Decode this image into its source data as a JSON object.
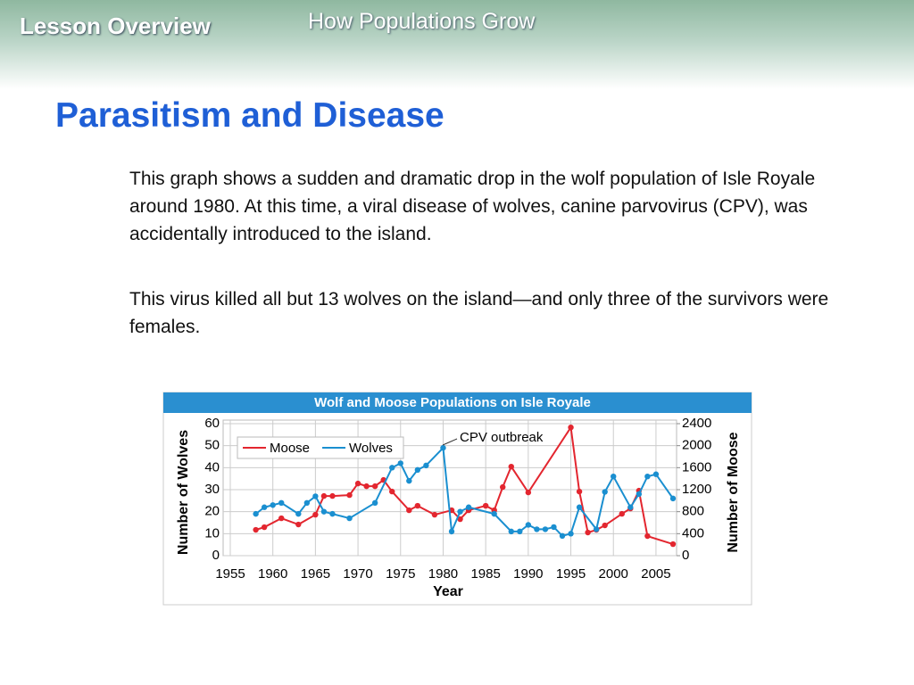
{
  "header": {
    "section": "Lesson Overview",
    "topic": "How Populations Grow"
  },
  "title": "Parasitism and Disease",
  "paragraphs": [
    "This graph shows a sudden and dramatic drop in the wolf population of Isle Royale around 1980. At this time, a viral disease of wolves, canine parvovirus (CPV), was accidentally introduced to the island.",
    "This virus killed all but 13 wolves on the island—and only three of the survivors were females."
  ],
  "chart_data": {
    "type": "line",
    "title": "Wolf and  Moose Populations on Isle Royale",
    "xlabel": "Year",
    "ylabel": "Number of Wolves",
    "y2label": "Number of Moose",
    "annotation": "CPV outbreak",
    "xlim": [
      1955,
      2007
    ],
    "xticks": [
      1955,
      1960,
      1965,
      1970,
      1975,
      1980,
      1985,
      1990,
      1995,
      2000,
      2005
    ],
    "ylim": [
      0,
      60
    ],
    "yticks": [
      0,
      10,
      20,
      30,
      40,
      50,
      60
    ],
    "y2lim": [
      0,
      2400
    ],
    "y2ticks": [
      0,
      400,
      800,
      1200,
      1600,
      2000,
      2400
    ],
    "grid": true,
    "legend": "upper left",
    "series": [
      {
        "name": "Moose",
        "color": "#e3262f",
        "axis": "y2",
        "x": [
          1958,
          1959,
          1961,
          1963,
          1965,
          1966,
          1967,
          1969,
          1970,
          1971,
          1972,
          1973,
          1974,
          1976,
          1977,
          1979,
          1981,
          1982,
          1983,
          1985,
          1986,
          1987,
          1988,
          1990,
          1995,
          1996,
          1997,
          1998,
          1999,
          2001,
          2002,
          2003,
          2004,
          2007
        ],
        "values": [
          470,
          518,
          680,
          567,
          745,
          1085,
          1085,
          1101,
          1312,
          1263,
          1263,
          1377,
          1166,
          826,
          907,
          745,
          826,
          664,
          826,
          907,
          826,
          1247,
          1619,
          1150,
          2332,
          1166,
          421,
          470,
          551,
          761,
          858,
          1182,
          356,
          210
        ]
      },
      {
        "name": "Wolves",
        "color": "#1a8fd0",
        "x": [
          1958,
          1959,
          1960,
          1961,
          1963,
          1964,
          1965,
          1966,
          1967,
          1969,
          1972,
          1974,
          1975,
          1976,
          1977,
          1978,
          1980,
          1981,
          1982,
          1983,
          1986,
          1988,
          1989,
          1990,
          1991,
          1992,
          1993,
          1994,
          1995,
          1996,
          1998,
          1999,
          2000,
          2002,
          2003,
          2004,
          2005,
          2007
        ],
        "values": [
          19,
          22,
          23,
          24,
          19,
          24,
          27,
          20,
          19,
          17,
          24,
          40,
          42,
          34,
          39,
          41,
          49,
          11,
          20,
          22,
          19,
          11,
          11,
          14,
          12,
          12,
          13,
          9,
          10,
          22,
          12,
          29,
          36,
          22,
          28,
          36,
          37,
          26
        ]
      }
    ]
  }
}
